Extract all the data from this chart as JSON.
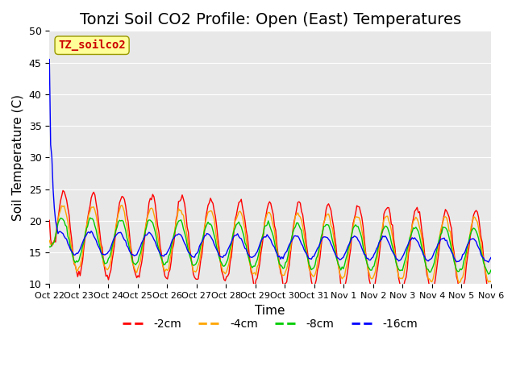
{
  "title": "Tonzi Soil CO2 Profile: Open (East) Temperatures",
  "xlabel": "Time",
  "ylabel": "Soil Temperature (C)",
  "ylim": [
    10,
    50
  ],
  "yticks": [
    10,
    15,
    20,
    25,
    30,
    35,
    40,
    45,
    50
  ],
  "series_colors": [
    "#ff0000",
    "#ffa500",
    "#00cc00",
    "#0000ff"
  ],
  "series_labels": [
    "-2cm",
    "-4cm",
    "-8cm",
    "-16cm"
  ],
  "legend_text": "TZ_soilco2",
  "legend_text_color": "#cc0000",
  "legend_box_color": "#ffff99",
  "background_color": "#e8e8e8",
  "n_days": 15,
  "x_tick_labels": [
    "Oct 22",
    "Oct 23",
    "Oct 24",
    "Oct 25",
    "Oct 26",
    "Oct 27",
    "Oct 28",
    "Oct 29",
    "Oct 30",
    "Oct 31",
    "Nov 1",
    "Nov 2",
    "Nov 3",
    "Nov 4",
    "Nov 5",
    "Nov 6"
  ],
  "title_fontsize": 14,
  "axis_fontsize": 11
}
